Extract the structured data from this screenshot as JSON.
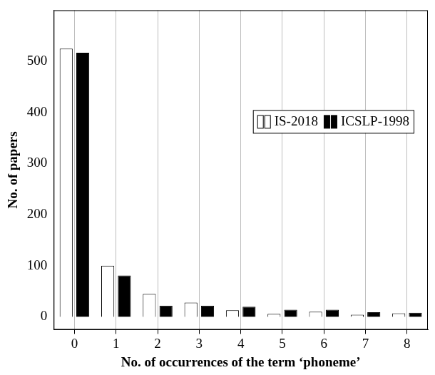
{
  "chart_data": {
    "type": "bar",
    "x_label": "No. of occurrences of the term ‘phoneme’",
    "y_label": "No. of papers",
    "categories": [
      "0",
      "1",
      "2",
      "3",
      "4",
      "5",
      "6",
      "7",
      "8"
    ],
    "series": [
      {
        "name": "IS-2018",
        "color": "#ffffff",
        "values": [
          525,
          100,
          45,
          28,
          13,
          6,
          10,
          4,
          7
        ]
      },
      {
        "name": "ICSLP-1998",
        "color": "#000000",
        "values": [
          517,
          81,
          22,
          22,
          20,
          14,
          14,
          9,
          8
        ]
      }
    ],
    "ylim": [
      -25,
      600
    ],
    "yticks": [
      0,
      100,
      200,
      300,
      400,
      500
    ],
    "grid": "x",
    "legend": "upper right"
  }
}
